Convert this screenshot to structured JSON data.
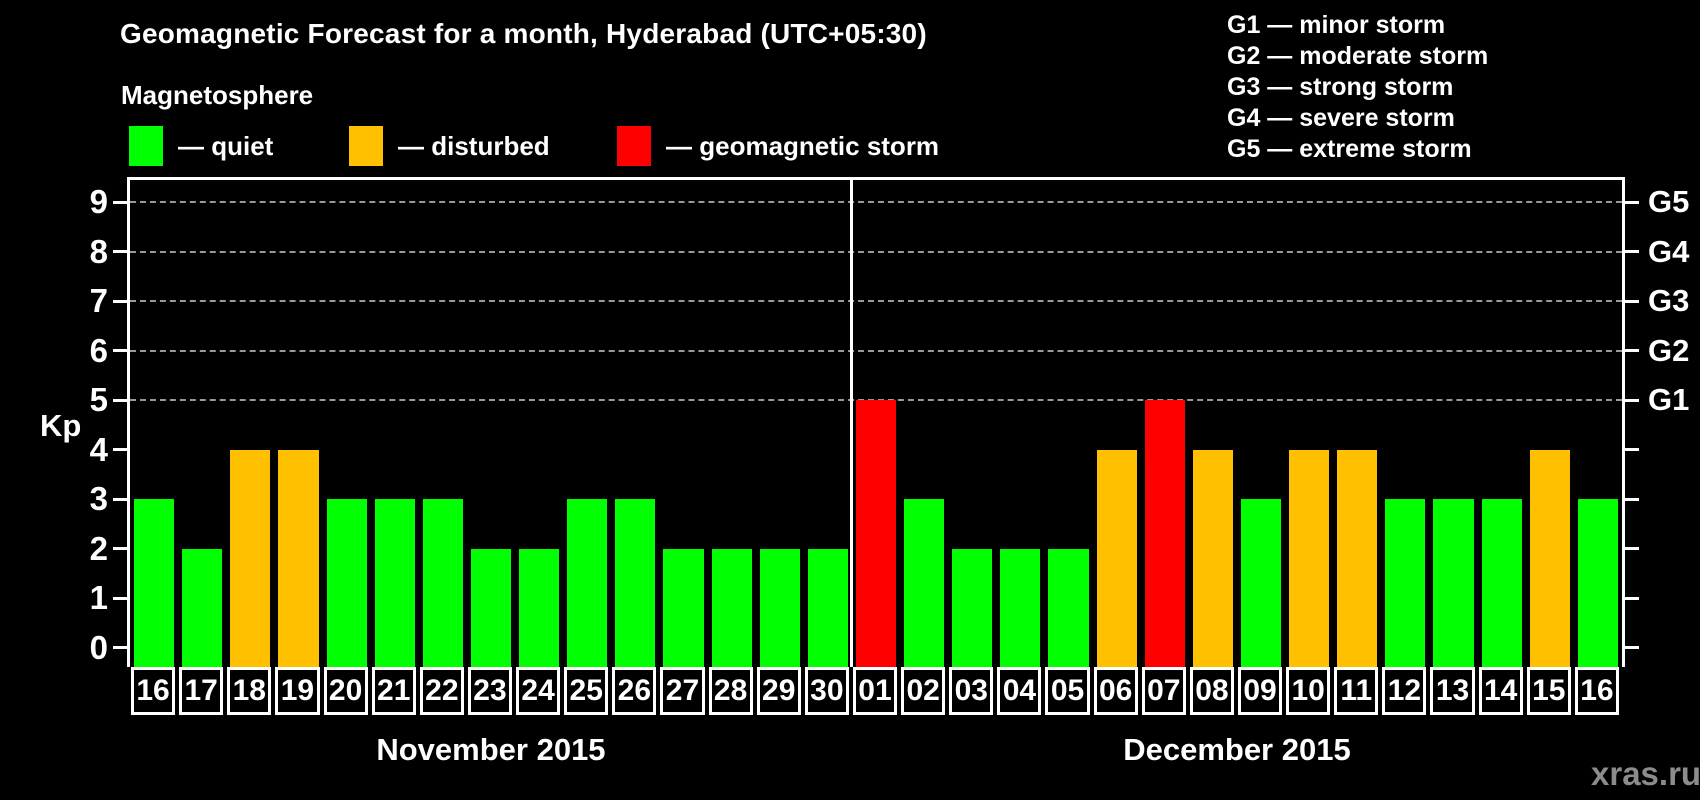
{
  "title": "Geomagnetic Forecast for a month, Hyderabad (UTC+05:30)",
  "subtitle": "Magnetosphere",
  "legend": [
    {
      "key": "quiet",
      "label": "— quiet",
      "color": "#00ff00"
    },
    {
      "key": "disturbed",
      "label": "— disturbed",
      "color": "#ffc000"
    },
    {
      "key": "storm",
      "label": "— geomagnetic storm",
      "color": "#ff0000"
    }
  ],
  "storm_scale": [
    "G1 — minor storm",
    "G2 — moderate storm",
    "G3 — strong storm",
    "G4 — severe storm",
    "G5 — extreme storm"
  ],
  "watermark": "xras.ru",
  "chart_data": {
    "type": "bar",
    "title": "Geomagnetic Forecast for a month, Hyderabad (UTC+05:30)",
    "ylabel": "Kp",
    "ylim": [
      0,
      9
    ],
    "yticks": [
      0,
      1,
      2,
      3,
      4,
      5,
      6,
      7,
      8,
      9
    ],
    "gridlines": [
      5,
      6,
      7,
      8,
      9
    ],
    "grid": "dashed horizontal at Kp 5-9",
    "legend_position": "top",
    "right_axis": [
      {
        "kp": 5,
        "label": "G1"
      },
      {
        "kp": 6,
        "label": "G2"
      },
      {
        "kp": 7,
        "label": "G3"
      },
      {
        "kp": 8,
        "label": "G4"
      },
      {
        "kp": 9,
        "label": "G5"
      }
    ],
    "status_colors": {
      "quiet": "#00ff00",
      "disturbed": "#ffc000",
      "storm": "#ff0000"
    },
    "months": [
      {
        "label": "November 2015",
        "days": [
          {
            "day": "16",
            "kp": 3,
            "status": "quiet"
          },
          {
            "day": "17",
            "kp": 2,
            "status": "quiet"
          },
          {
            "day": "18",
            "kp": 4,
            "status": "disturbed"
          },
          {
            "day": "19",
            "kp": 4,
            "status": "disturbed"
          },
          {
            "day": "20",
            "kp": 3,
            "status": "quiet"
          },
          {
            "day": "21",
            "kp": 3,
            "status": "quiet"
          },
          {
            "day": "22",
            "kp": 3,
            "status": "quiet"
          },
          {
            "day": "23",
            "kp": 2,
            "status": "quiet"
          },
          {
            "day": "24",
            "kp": 2,
            "status": "quiet"
          },
          {
            "day": "25",
            "kp": 3,
            "status": "quiet"
          },
          {
            "day": "26",
            "kp": 3,
            "status": "quiet"
          },
          {
            "day": "27",
            "kp": 2,
            "status": "quiet"
          },
          {
            "day": "28",
            "kp": 2,
            "status": "quiet"
          },
          {
            "day": "29",
            "kp": 2,
            "status": "quiet"
          },
          {
            "day": "30",
            "kp": 2,
            "status": "quiet"
          }
        ]
      },
      {
        "label": "December 2015",
        "days": [
          {
            "day": "01",
            "kp": 5,
            "status": "storm"
          },
          {
            "day": "02",
            "kp": 3,
            "status": "quiet"
          },
          {
            "day": "03",
            "kp": 2,
            "status": "quiet"
          },
          {
            "day": "04",
            "kp": 2,
            "status": "quiet"
          },
          {
            "day": "05",
            "kp": 2,
            "status": "quiet"
          },
          {
            "day": "06",
            "kp": 4,
            "status": "disturbed"
          },
          {
            "day": "07",
            "kp": 5,
            "status": "storm"
          },
          {
            "day": "08",
            "kp": 4,
            "status": "disturbed"
          },
          {
            "day": "09",
            "kp": 3,
            "status": "quiet"
          },
          {
            "day": "10",
            "kp": 4,
            "status": "disturbed"
          },
          {
            "day": "11",
            "kp": 4,
            "status": "disturbed"
          },
          {
            "day": "12",
            "kp": 3,
            "status": "quiet"
          },
          {
            "day": "13",
            "kp": 3,
            "status": "quiet"
          },
          {
            "day": "14",
            "kp": 3,
            "status": "quiet"
          },
          {
            "day": "15",
            "kp": 4,
            "status": "disturbed"
          },
          {
            "day": "16",
            "kp": 3,
            "status": "quiet"
          }
        ]
      }
    ]
  }
}
